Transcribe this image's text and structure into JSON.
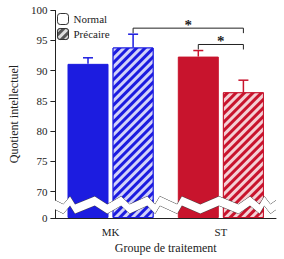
{
  "chart_data": {
    "type": "bar",
    "categories": [
      "MK",
      "ST"
    ],
    "x_label": "Groupe de traitement",
    "y_label": "Quotient intellectuel",
    "series": [
      {
        "name": "Normal",
        "colors": [
          "#1c1ce0",
          "#c8142d"
        ],
        "values": [
          91.1,
          92.3
        ],
        "errors": [
          1.0,
          1.0
        ]
      },
      {
        "name": "Précaire",
        "colors": [
          "#1c1ce0",
          "#c8142d"
        ],
        "values": [
          93.8,
          86.4
        ],
        "errors": [
          2.2,
          2.0
        ]
      }
    ],
    "ylim": [
      0,
      100
    ],
    "yticks": [
      0,
      70,
      75,
      80,
      85,
      90,
      95,
      100
    ],
    "grid": false,
    "legend": "top-left",
    "annotations": [
      {
        "from": {
          "category": "MK",
          "series": "Précaire"
        },
        "to": {
          "category": "ST",
          "series": "Précaire"
        },
        "text": "*"
      },
      {
        "from": {
          "category": "ST",
          "series": "Normal"
        },
        "to": {
          "category": "ST",
          "series": "Précaire"
        },
        "text": "*"
      }
    ]
  }
}
